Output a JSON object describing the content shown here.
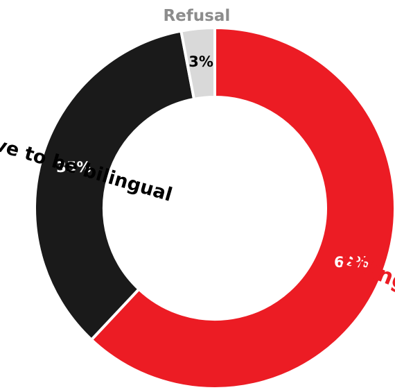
{
  "chart_data": {
    "type": "pie",
    "variant": "donut",
    "categories": [
      "Bilingual",
      "Doesn’t have to be bilingual",
      "Refusal"
    ],
    "values": [
      62,
      35,
      3
    ],
    "value_labels": [
      "62%",
      "35%",
      "3%"
    ],
    "colors": [
      "#ec1c24",
      "#1a1a1a",
      "#d9d9d9"
    ],
    "label_colors": [
      "#ec1c24",
      "#000000",
      "#8c8c8c"
    ],
    "value_label_colors": [
      "#ffffff",
      "#ffffff",
      "#000000"
    ],
    "start_angle_deg": 0,
    "direction": "clockwise"
  }
}
